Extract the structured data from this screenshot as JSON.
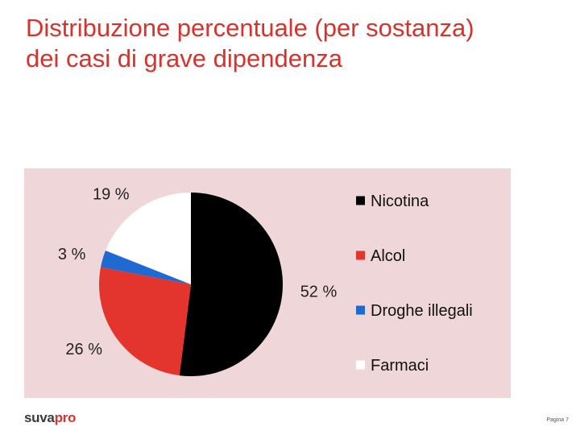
{
  "slide": {
    "title_line1": "Distribuzione percentuale (per sostanza)",
    "title_line2": "dei casi di grave dipendenza",
    "page_number": "Pagina 7",
    "logo_part1": "suva",
    "logo_part2": "pro"
  },
  "colors": {
    "title": "#d5332c",
    "panel": "#efd7d9",
    "Nicotina": "#000000",
    "Alcol": "#e3352e",
    "Droghe illegali": "#1f6ad0",
    "Farmaci": "#ffffff"
  },
  "chart_data": {
    "type": "pie",
    "title": "",
    "slices": [
      {
        "label": "Nicotina",
        "value": 52,
        "value_label": "52 %"
      },
      {
        "label": "Alcol",
        "value": 26,
        "value_label": "26 %"
      },
      {
        "label": "Droghe illegali",
        "value": 3,
        "value_label": "3 %"
      },
      {
        "label": "Farmaci",
        "value": 19,
        "value_label": "19 %"
      }
    ],
    "start": "top, clockwise",
    "legend_position": "right"
  }
}
